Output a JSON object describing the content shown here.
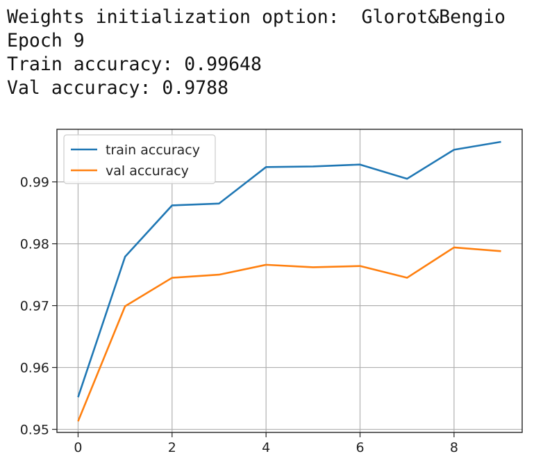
{
  "console": {
    "lines": [
      "Weights initialization option:  Glorot&Bengio",
      "Epoch 9",
      "Train accuracy: 0.99648",
      "Val accuracy: 0.9788"
    ]
  },
  "chart_data": {
    "type": "line",
    "title": "",
    "xlabel": "",
    "ylabel": "",
    "xlim": [
      -0.45,
      9.45
    ],
    "ylim": [
      0.9495,
      0.9985
    ],
    "xticks": [
      0,
      2,
      4,
      6,
      8
    ],
    "xtick_labels": [
      "0",
      "2",
      "4",
      "6",
      "8"
    ],
    "yticks": [
      0.95,
      0.96,
      0.97,
      0.98,
      0.99
    ],
    "ytick_labels": [
      "0.95",
      "0.96",
      "0.97",
      "0.98",
      "0.99"
    ],
    "grid": true,
    "legend_position": "top-left",
    "x": [
      0,
      1,
      2,
      3,
      4,
      5,
      6,
      7,
      8,
      9
    ],
    "series": [
      {
        "name": "train accuracy",
        "color": "#1f77b4",
        "values": [
          0.9552,
          0.9779,
          0.9862,
          0.9865,
          0.9924,
          0.9925,
          0.9928,
          0.9905,
          0.9952,
          0.99648
        ]
      },
      {
        "name": "val accuracy",
        "color": "#ff7f0e",
        "values": [
          0.9513,
          0.9699,
          0.9745,
          0.975,
          0.9766,
          0.9762,
          0.9764,
          0.9745,
          0.9794,
          0.9788
        ]
      }
    ]
  }
}
